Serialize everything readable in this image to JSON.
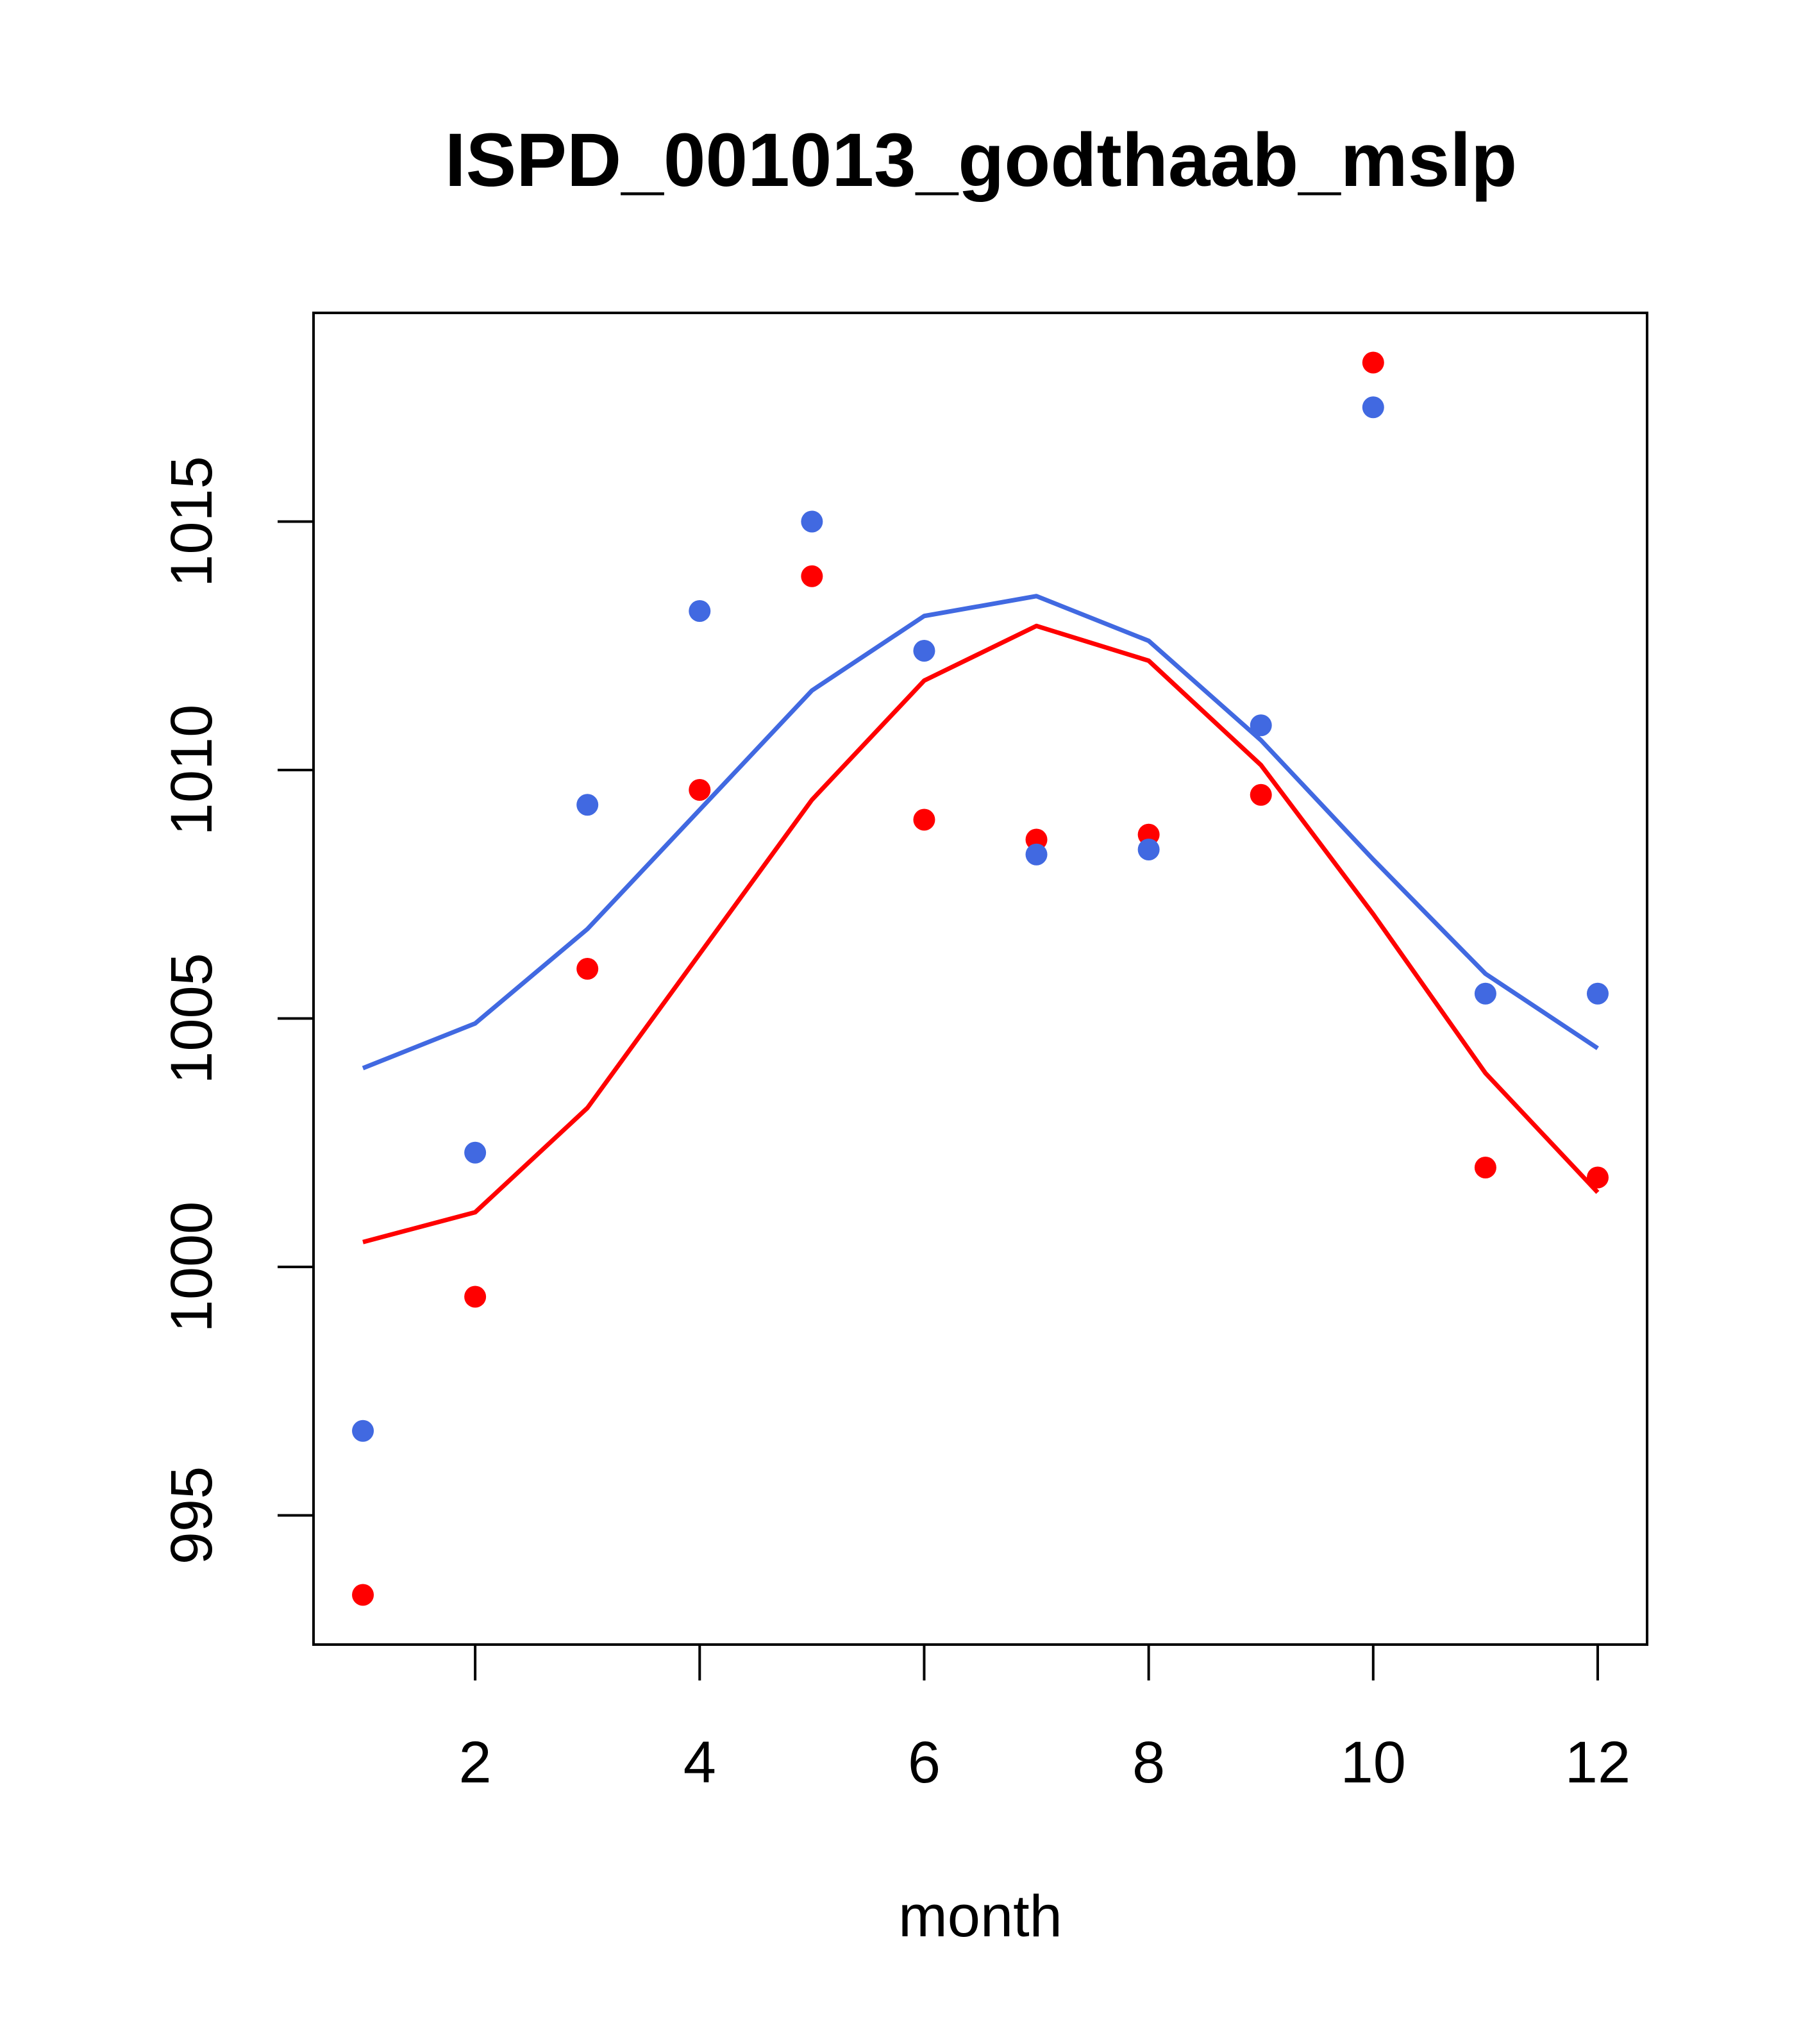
{
  "chart_data": {
    "type": "line",
    "title": "ISPD_001013_godthaab_mslp",
    "xlabel": "month",
    "ylabel": "",
    "xlim": [
      0.56,
      12.44
    ],
    "ylim": [
      992.4,
      1019.2
    ],
    "xticks": [
      2,
      4,
      6,
      8,
      10,
      12
    ],
    "yticks": [
      995,
      1000,
      1005,
      1010,
      1015
    ],
    "grid": false,
    "legend": "none",
    "x": [
      1,
      2,
      3,
      4,
      5,
      6,
      7,
      8,
      9,
      10,
      11,
      12
    ],
    "series": [
      {
        "color": "#ff0000",
        "line": [
          1000.5,
          1001.1,
          1003.2,
          1006.3,
          1009.4,
          1011.8,
          1012.9,
          1012.2,
          1010.1,
          1007.1,
          1003.9,
          1001.5
        ],
        "points": [
          993.4,
          999.4,
          1006.0,
          1009.6,
          1013.9,
          1009.0,
          1008.6,
          1008.7,
          1009.5,
          1018.2,
          1002.0,
          1001.8
        ]
      },
      {
        "color": "#4169e1",
        "line": [
          1004.0,
          1004.9,
          1006.8,
          1009.2,
          1011.6,
          1013.1,
          1013.5,
          1012.6,
          1010.6,
          1008.2,
          1005.9,
          1004.4
        ],
        "points": [
          996.7,
          1002.3,
          1009.3,
          1013.2,
          1015.0,
          1012.4,
          1008.3,
          1008.4,
          1010.9,
          1017.3,
          1005.5,
          1005.5
        ]
      }
    ]
  }
}
